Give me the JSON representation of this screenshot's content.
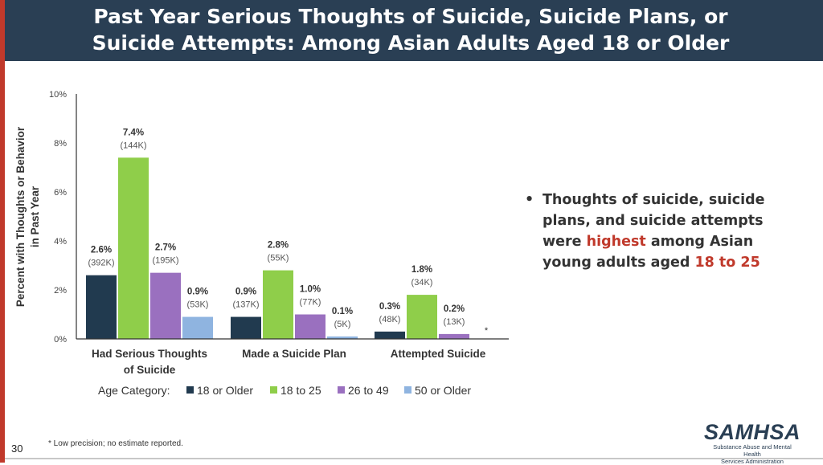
{
  "slide": {
    "title_line1": "Past Year Serious Thoughts of Suicide, Suicide Plans, or",
    "title_line2": "Suicide Attempts: Among Asian Adults Aged 18 or Older",
    "page_number": "30",
    "footnote": "* Low precision; no estimate reported."
  },
  "bullet": {
    "marker": "•",
    "text_before": "Thoughts of suicide, suicide plans, and suicide attempts were ",
    "highlight1": "highest",
    "text_middle": " among Asian young adults aged ",
    "highlight2": "18 to 25"
  },
  "logo": {
    "name": "SAMHSA",
    "sub_line1": "Substance Abuse and Mental Health",
    "sub_line2": "Services Administration"
  },
  "colors": {
    "header_bg": "#2a3f54",
    "accent_red": "#c0392b",
    "series": [
      "#213a4f",
      "#8fce4a",
      "#9a70bf",
      "#8fb4e0"
    ]
  },
  "chart_data": {
    "type": "bar",
    "ylabel_line1": "Percent with Thoughts or Behavior",
    "ylabel_line2": "in Past Year",
    "ylim": [
      0,
      10
    ],
    "yticks": [
      "0%",
      "2%",
      "4%",
      "6%",
      "8%",
      "10%"
    ],
    "grid": false,
    "legend_title": "Age Category:",
    "legend_position": "bottom",
    "categories": [
      [
        "Had Serious Thoughts",
        "of Suicide"
      ],
      [
        "Made a Suicide Plan"
      ],
      [
        "Attempted Suicide"
      ]
    ],
    "series": [
      {
        "name": "18 or Older",
        "values": [
          2.6,
          0.9,
          0.3
        ],
        "labels": [
          "2.6%",
          "0.9%",
          "0.3%"
        ],
        "counts": [
          "(392K)",
          "(137K)",
          "(48K)"
        ]
      },
      {
        "name": "18 to 25",
        "values": [
          7.4,
          2.8,
          1.8
        ],
        "labels": [
          "7.4%",
          "2.8%",
          "1.8%"
        ],
        "counts": [
          "(144K)",
          "(55K)",
          "(34K)"
        ]
      },
      {
        "name": "26 to 49",
        "values": [
          2.7,
          1.0,
          0.2
        ],
        "labels": [
          "2.7%",
          "1.0%",
          "0.2%"
        ],
        "counts": [
          "(195K)",
          "(77K)",
          "(13K)"
        ]
      },
      {
        "name": "50 or Older",
        "values": [
          0.9,
          0.1,
          null
        ],
        "labels": [
          "0.9%",
          "0.1%",
          "*"
        ],
        "counts": [
          "(53K)",
          "(5K)",
          ""
        ]
      }
    ]
  }
}
